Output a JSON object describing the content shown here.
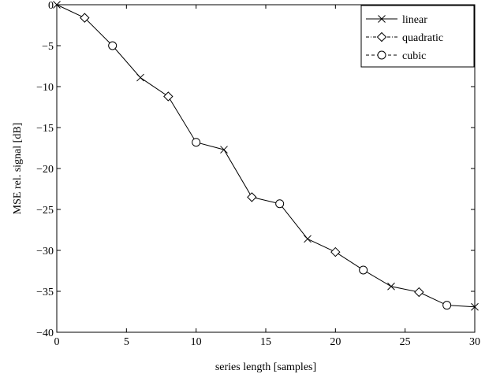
{
  "chart_data": {
    "type": "line",
    "title": "",
    "xlabel": "series length [samples]",
    "ylabel": "MSE rel. signal [dB]",
    "xlim": [
      0,
      30
    ],
    "ylim": [
      -40,
      0
    ],
    "xticks": [
      0,
      5,
      10,
      15,
      20,
      25,
      30
    ],
    "yticks": [
      0,
      -5,
      -10,
      -15,
      -20,
      -25,
      -30,
      -35,
      -40
    ],
    "grid": false,
    "legend_position": "top-right",
    "x": [
      0,
      2,
      4,
      6,
      8,
      10,
      12,
      14,
      16,
      18,
      20,
      22,
      24,
      26,
      28,
      30
    ],
    "y": [
      0,
      -1.6,
      -5.0,
      -8.9,
      -11.2,
      -16.8,
      -17.7,
      -23.5,
      -24.3,
      -28.6,
      -30.2,
      -32.4,
      -34.4,
      -35.1,
      -36.7,
      -36.9
    ],
    "series": [
      {
        "name": "linear",
        "marker": "x",
        "line": "solid",
        "x": [
          0,
          6,
          12,
          18,
          24,
          30
        ],
        "y": [
          0,
          -8.9,
          -17.7,
          -28.6,
          -34.4,
          -36.9
        ]
      },
      {
        "name": "quadratic",
        "marker": "diamond",
        "line": "dash-dot",
        "x": [
          2,
          8,
          14,
          20,
          26
        ],
        "y": [
          -1.6,
          -11.2,
          -23.5,
          -30.2,
          -35.1
        ]
      },
      {
        "name": "cubic",
        "marker": "circle",
        "line": "dashed",
        "x": [
          4,
          10,
          16,
          22,
          28
        ],
        "y": [
          -5.0,
          -16.8,
          -24.3,
          -32.4,
          -36.7
        ]
      }
    ]
  }
}
